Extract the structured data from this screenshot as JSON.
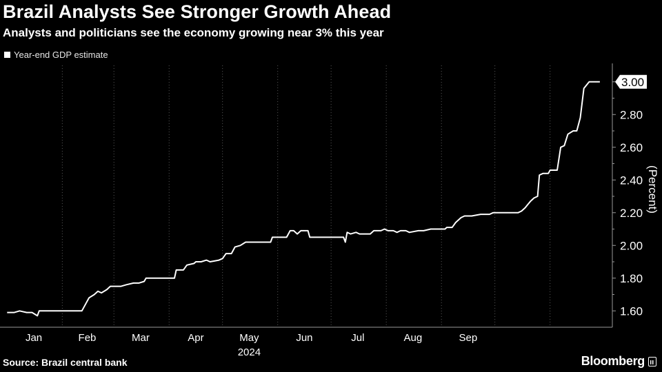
{
  "title": "Brazil Analysts See Stronger Growth Ahead",
  "subtitle": "Analysts and politicians see the economy growing near 3% this year",
  "source": "Source: Brazil central bank",
  "brand": "Bloomberg",
  "chart_data": {
    "type": "line",
    "series": [
      {
        "name": "Year-end GDP estimate",
        "color": "#ffffff",
        "points": [
          [
            "2024-01-01",
            1.59
          ],
          [
            "2024-01-05",
            1.59
          ],
          [
            "2024-01-08",
            1.6
          ],
          [
            "2024-01-12",
            1.59
          ],
          [
            "2024-01-15",
            1.59
          ],
          [
            "2024-01-18",
            1.57
          ],
          [
            "2024-01-19",
            1.6
          ],
          [
            "2024-01-26",
            1.6
          ],
          [
            "2024-02-02",
            1.6
          ],
          [
            "2024-02-09",
            1.6
          ],
          [
            "2024-02-12",
            1.6
          ],
          [
            "2024-02-16",
            1.68
          ],
          [
            "2024-02-19",
            1.7
          ],
          [
            "2024-02-21",
            1.72
          ],
          [
            "2024-02-23",
            1.71
          ],
          [
            "2024-02-26",
            1.73
          ],
          [
            "2024-02-28",
            1.75
          ],
          [
            "2024-03-01",
            1.75
          ],
          [
            "2024-03-05",
            1.75
          ],
          [
            "2024-03-08",
            1.76
          ],
          [
            "2024-03-12",
            1.77
          ],
          [
            "2024-03-15",
            1.77
          ],
          [
            "2024-03-18",
            1.78
          ],
          [
            "2024-03-19",
            1.8
          ],
          [
            "2024-03-22",
            1.8
          ],
          [
            "2024-03-29",
            1.8
          ],
          [
            "2024-04-04",
            1.8
          ],
          [
            "2024-04-05",
            1.85
          ],
          [
            "2024-04-09",
            1.85
          ],
          [
            "2024-04-11",
            1.88
          ],
          [
            "2024-04-15",
            1.89
          ],
          [
            "2024-04-16",
            1.9
          ],
          [
            "2024-04-19",
            1.9
          ],
          [
            "2024-04-22",
            1.91
          ],
          [
            "2024-04-24",
            1.9
          ],
          [
            "2024-04-29",
            1.91
          ],
          [
            "2024-05-01",
            1.92
          ],
          [
            "2024-05-03",
            1.95
          ],
          [
            "2024-05-06",
            1.95
          ],
          [
            "2024-05-08",
            1.99
          ],
          [
            "2024-05-11",
            2.0
          ],
          [
            "2024-05-14",
            2.02
          ],
          [
            "2024-05-17",
            2.02
          ],
          [
            "2024-05-24",
            2.02
          ],
          [
            "2024-05-28",
            2.02
          ],
          [
            "2024-05-29",
            2.05
          ],
          [
            "2024-06-04",
            2.05
          ],
          [
            "2024-06-06",
            2.05
          ],
          [
            "2024-06-08",
            2.09
          ],
          [
            "2024-06-10",
            2.09
          ],
          [
            "2024-06-12",
            2.07
          ],
          [
            "2024-06-14",
            2.09
          ],
          [
            "2024-06-18",
            2.09
          ],
          [
            "2024-06-19",
            2.05
          ],
          [
            "2024-06-25",
            2.05
          ],
          [
            "2024-07-01",
            2.05
          ],
          [
            "2024-07-08",
            2.05
          ],
          [
            "2024-07-09",
            2.02
          ],
          [
            "2024-07-10",
            2.08
          ],
          [
            "2024-07-12",
            2.07
          ],
          [
            "2024-07-15",
            2.08
          ],
          [
            "2024-07-17",
            2.07
          ],
          [
            "2024-07-23",
            2.07
          ],
          [
            "2024-07-25",
            2.09
          ],
          [
            "2024-07-29",
            2.09
          ],
          [
            "2024-07-31",
            2.1
          ],
          [
            "2024-08-02",
            2.09
          ],
          [
            "2024-08-05",
            2.09
          ],
          [
            "2024-08-07",
            2.08
          ],
          [
            "2024-08-09",
            2.09
          ],
          [
            "2024-08-12",
            2.09
          ],
          [
            "2024-08-14",
            2.08
          ],
          [
            "2024-08-19",
            2.09
          ],
          [
            "2024-08-22",
            2.09
          ],
          [
            "2024-08-26",
            2.1
          ],
          [
            "2024-09-03",
            2.1
          ],
          [
            "2024-09-04",
            2.11
          ],
          [
            "2024-09-06",
            2.11
          ],
          [
            "2024-09-07",
            2.11
          ],
          [
            "2024-09-09",
            2.14
          ],
          [
            "2024-09-12",
            2.17
          ],
          [
            "2024-09-14",
            2.18
          ],
          [
            "2024-09-18",
            2.18
          ],
          [
            "2024-09-23",
            2.19
          ],
          [
            "2024-09-28",
            2.19
          ],
          [
            "2024-09-30",
            2.2
          ],
          [
            "2024-10-07",
            2.2
          ],
          [
            "2024-10-14",
            2.2
          ],
          [
            "2024-10-16",
            2.21
          ],
          [
            "2024-10-18",
            2.23
          ],
          [
            "2024-10-21",
            2.27
          ],
          [
            "2024-10-23",
            2.29
          ],
          [
            "2024-10-25",
            2.3
          ],
          [
            "2024-10-26",
            2.43
          ],
          [
            "2024-10-28",
            2.44
          ],
          [
            "2024-10-31",
            2.44
          ],
          [
            "2024-11-01",
            2.46
          ],
          [
            "2024-11-05",
            2.46
          ],
          [
            "2024-11-07",
            2.6
          ],
          [
            "2024-11-09",
            2.61
          ],
          [
            "2024-11-11",
            2.68
          ],
          [
            "2024-11-14",
            2.7
          ],
          [
            "2024-11-16",
            2.7
          ],
          [
            "2024-11-18",
            2.78
          ],
          [
            "2024-11-20",
            2.96
          ],
          [
            "2024-11-23",
            3.0
          ],
          [
            "2024-11-29",
            3.0
          ]
        ]
      }
    ],
    "x_tick_labels": [
      "Jan",
      "Feb",
      "Mar",
      "Apr",
      "May",
      "Jun",
      "Jul",
      "Aug",
      "Sep"
    ],
    "year_label": "2024",
    "y_ticks": [
      1.6,
      1.8,
      2.0,
      2.2,
      2.4,
      2.6,
      2.8,
      3.0
    ],
    "ylim": [
      1.5,
      3.1
    ],
    "ylabel": "(Percent)",
    "last_value_label": "3.00",
    "grid": "vertical-dotted",
    "legend_position": "top-left"
  }
}
